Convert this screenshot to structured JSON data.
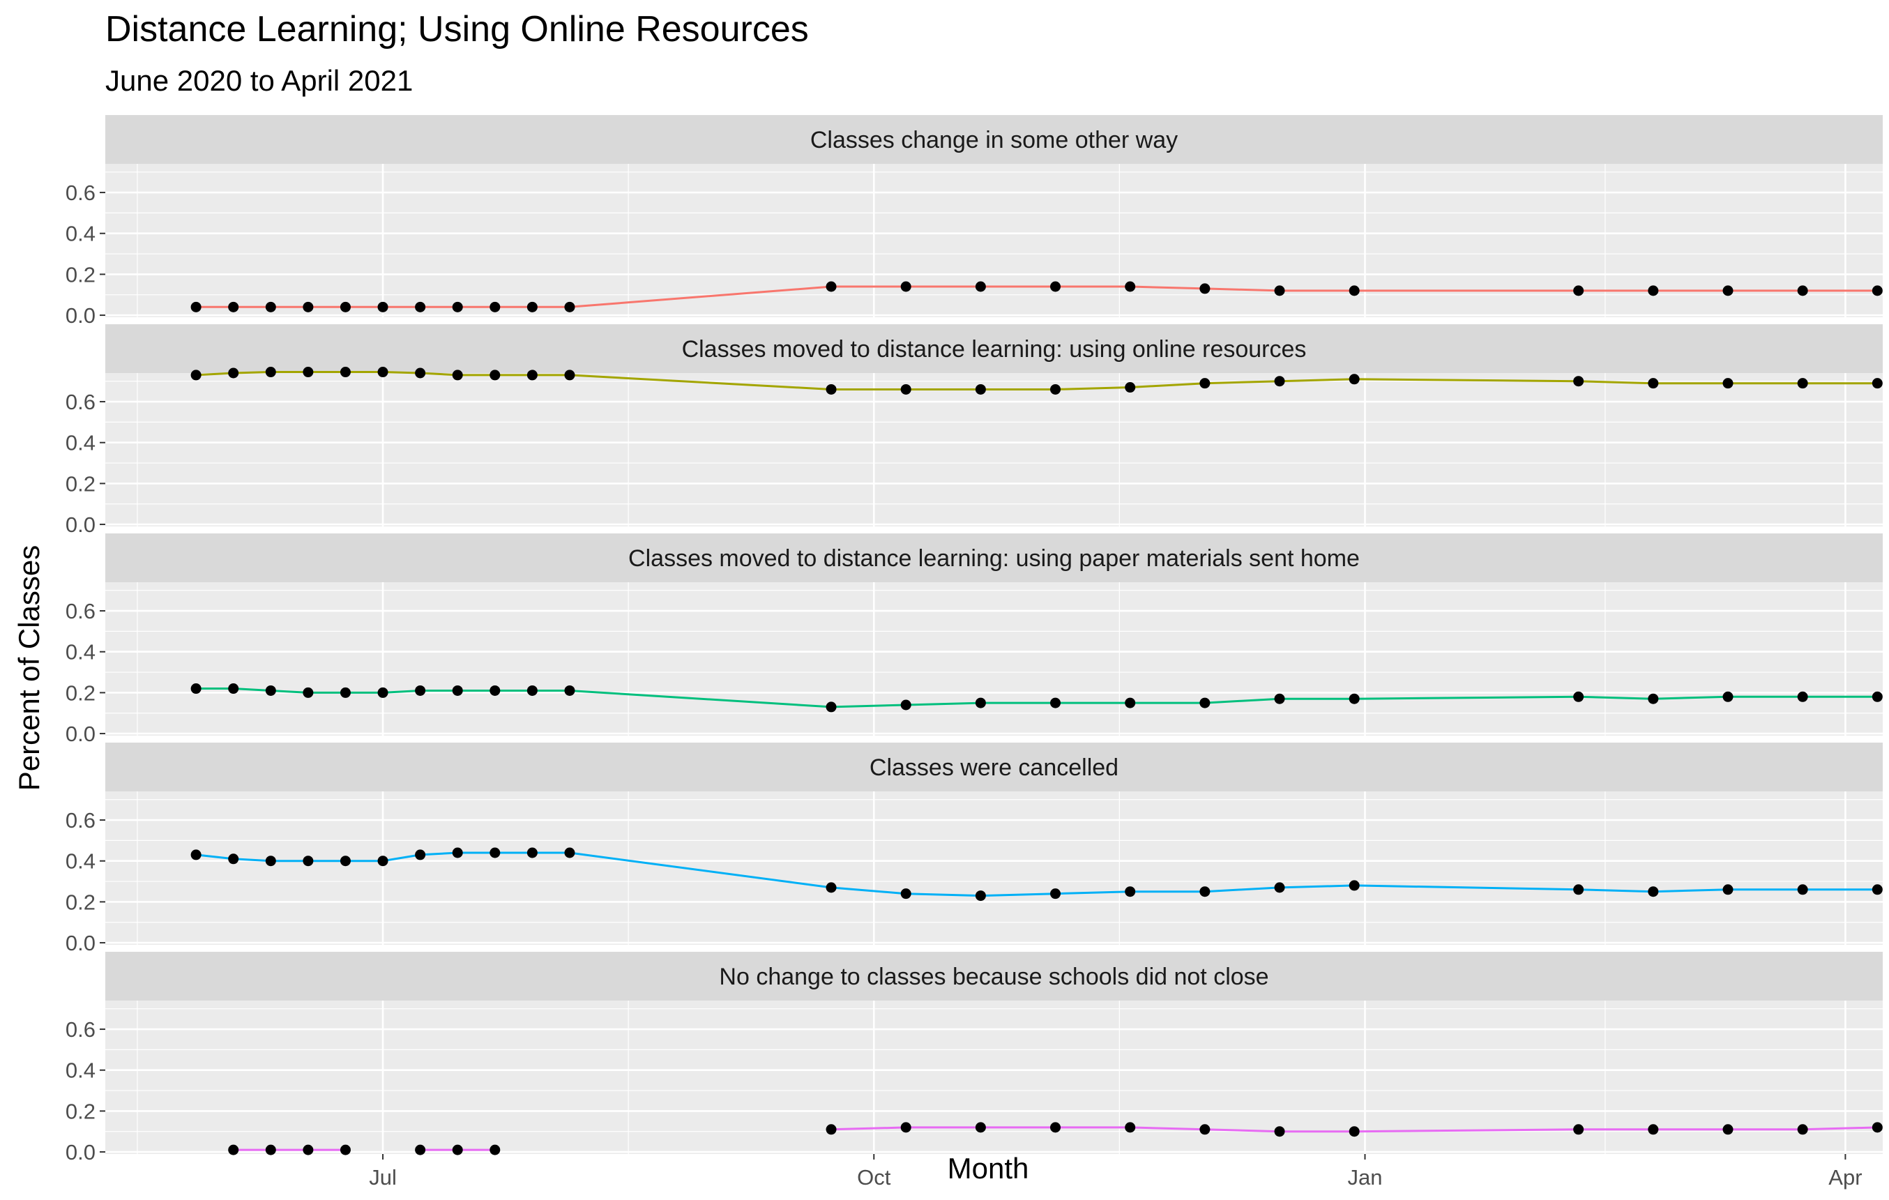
{
  "chart_data": {
    "type": "line",
    "title": "Distance Learning; Using Online Resources",
    "subtitle": "June 2020 to April 2021",
    "xlabel": "Month",
    "ylabel": "Percent of Classes",
    "x_tick_labels": [
      "Jul",
      "Oct",
      "Jan",
      "Apr"
    ],
    "x_tick_dates": [
      "2020-07-01",
      "2020-10-01",
      "2021-01-01",
      "2021-04-01"
    ],
    "xlim": [
      "2020-05-10",
      "2021-04-08"
    ],
    "y_tick_labels": [
      "0.0",
      "0.2",
      "0.4",
      "0.6"
    ],
    "ylim": [
      -0.01,
      0.74
    ],
    "facet": "rows",
    "grid": true,
    "points": true,
    "dates": [
      "2020-05-27",
      "2020-06-03",
      "2020-06-10",
      "2020-06-17",
      "2020-06-24",
      "2020-07-01",
      "2020-07-08",
      "2020-07-15",
      "2020-07-22",
      "2020-07-29",
      "2020-08-05",
      "2020-09-23",
      "2020-10-07",
      "2020-10-21",
      "2020-11-04",
      "2020-11-18",
      "2020-12-02",
      "2020-12-16",
      "2020-12-30",
      "2021-02-10",
      "2021-02-24",
      "2021-03-10",
      "2021-03-24",
      "2021-04-07"
    ],
    "series": [
      {
        "name": "Classes change in some other way",
        "color": "#F8766D",
        "values": [
          0.04,
          0.04,
          0.04,
          0.04,
          0.04,
          0.04,
          0.04,
          0.04,
          0.04,
          0.04,
          0.04,
          0.14,
          0.14,
          0.14,
          0.14,
          0.14,
          0.13,
          0.12,
          0.12,
          0.12,
          0.12,
          0.12,
          0.12,
          0.12
        ]
      },
      {
        "name": "Classes moved to distance learning: using online resources",
        "color": "#A3A500",
        "values": [
          0.73,
          0.74,
          0.745,
          0.745,
          0.745,
          0.745,
          0.74,
          0.73,
          0.73,
          0.73,
          0.73,
          0.66,
          0.66,
          0.66,
          0.66,
          0.67,
          0.69,
          0.7,
          0.71,
          0.7,
          0.69,
          0.69,
          0.69,
          0.69
        ]
      },
      {
        "name": "Classes moved to distance learning: using paper materials sent home",
        "color": "#00BF7D",
        "values": [
          0.22,
          0.22,
          0.21,
          0.2,
          0.2,
          0.2,
          0.21,
          0.21,
          0.21,
          0.21,
          0.21,
          0.13,
          0.14,
          0.15,
          0.15,
          0.15,
          0.15,
          0.17,
          0.17,
          0.18,
          0.17,
          0.18,
          0.18,
          0.18
        ]
      },
      {
        "name": "Classes were cancelled",
        "color": "#00B0F6",
        "values": [
          0.43,
          0.41,
          0.4,
          0.4,
          0.4,
          0.4,
          0.43,
          0.44,
          0.44,
          0.44,
          0.44,
          0.27,
          0.24,
          0.23,
          0.24,
          0.25,
          0.25,
          0.27,
          0.28,
          0.26,
          0.25,
          0.26,
          0.26,
          0.26
        ]
      },
      {
        "name": "No change to classes because schools did not close",
        "color": "#E76BF3",
        "values": [
          null,
          0.01,
          0.01,
          0.01,
          0.01,
          null,
          0.01,
          0.01,
          0.01,
          null,
          null,
          0.11,
          0.12,
          0.12,
          0.12,
          0.12,
          0.11,
          0.1,
          0.1,
          0.11,
          0.11,
          0.11,
          0.11,
          0.12
        ]
      }
    ]
  }
}
